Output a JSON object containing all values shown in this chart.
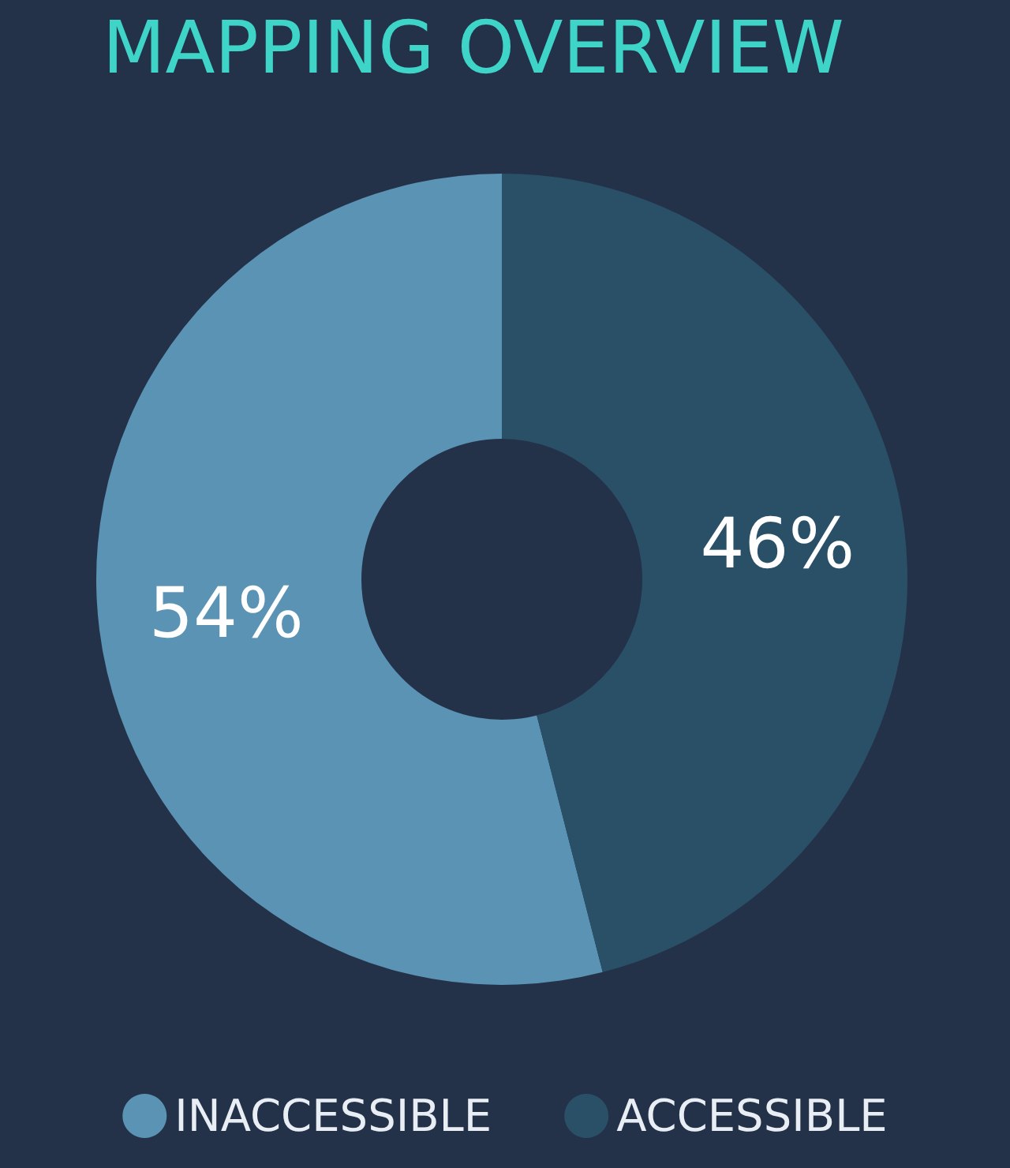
{
  "chart_data": {
    "type": "donut",
    "title": "MAPPING OVERVIEW",
    "categories": [
      "INACCESSIBLE",
      "ACCESSIBLE"
    ],
    "values": [
      54,
      46
    ],
    "colors": [
      "#5b93b5",
      "#2a5068"
    ],
    "value_labels": [
      "54%",
      "46%"
    ],
    "legend": "bottom"
  }
}
